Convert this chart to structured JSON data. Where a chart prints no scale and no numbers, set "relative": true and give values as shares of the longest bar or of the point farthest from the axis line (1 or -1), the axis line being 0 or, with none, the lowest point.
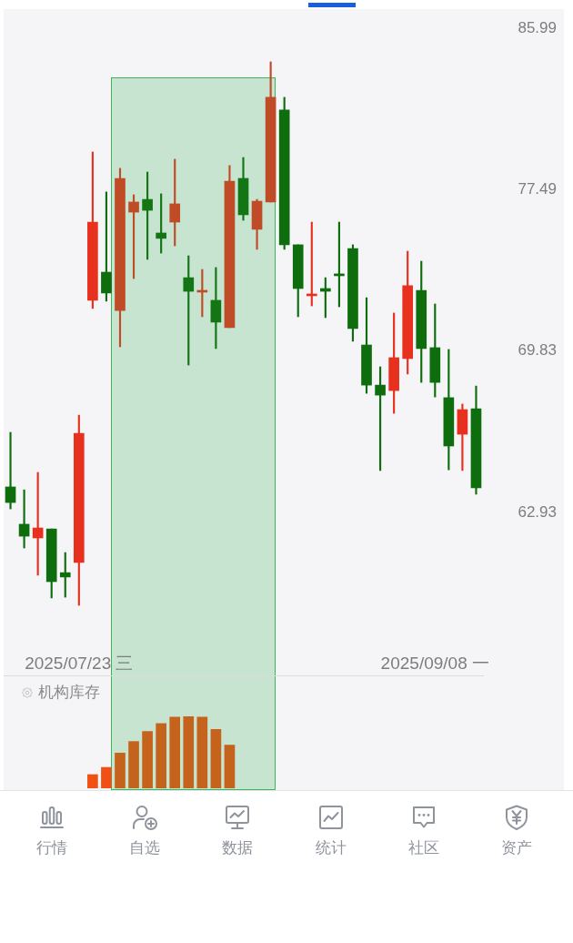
{
  "chart_data": [
    {
      "type": "candlestick",
      "categories": [
        null,
        null,
        null,
        null,
        null,
        "2025/07/23 三",
        null,
        null,
        null,
        null,
        null,
        null,
        null,
        null,
        null,
        null,
        null,
        null,
        null,
        null,
        null,
        null,
        null,
        null,
        null,
        null,
        null,
        null,
        null,
        null,
        null,
        "2025/09/08 一",
        null,
        null,
        null
      ],
      "ohlc": [
        [
          63.97,
          66.26,
          63.07,
          63.33
        ],
        [
          62.45,
          63.85,
          61.5,
          61.97
        ],
        [
          61.9,
          64.57,
          60.43,
          62.3
        ],
        [
          62.26,
          62.26,
          59.55,
          60.18
        ],
        [
          60.53,
          61.32,
          59.58,
          60.36
        ],
        [
          60.93,
          67.0,
          59.27,
          66.22
        ],
        [
          72.15,
          79.39,
          71.77,
          75.88
        ],
        [
          73.47,
          77.37,
          72.11,
          72.49
        ],
        [
          71.68,
          78.56,
          70.02,
          78.05
        ],
        [
          76.37,
          77.23,
          73.17,
          76.87
        ],
        [
          77.0,
          78.37,
          74.08,
          76.46
        ],
        [
          75.35,
          77.28,
          74.38,
          75.09
        ],
        [
          75.88,
          79.02,
          74.73,
          76.78
        ],
        [
          73.21,
          74.25,
          69.2,
          72.57
        ],
        [
          72.53,
          73.6,
          71.39,
          72.61
        ],
        [
          72.15,
          73.69,
          69.94,
          71.14
        ],
        [
          70.89,
          78.7,
          70.89,
          77.91
        ],
        [
          78.05,
          79.11,
          75.97,
          76.24
        ],
        [
          75.53,
          77.0,
          74.56,
          76.91
        ],
        [
          76.87,
          84.14,
          76.87,
          82.24
        ],
        [
          81.57,
          82.24,
          74.56,
          74.78
        ],
        [
          74.78,
          74.78,
          71.39,
          72.7
        ],
        [
          72.36,
          75.88,
          71.89,
          72.44
        ],
        [
          72.7,
          73.21,
          71.35,
          72.57
        ],
        [
          73.39,
          75.88,
          71.85,
          73.3
        ],
        [
          74.6,
          74.78,
          70.27,
          70.85
        ],
        [
          70.1,
          72.27,
          67.95,
          68.31
        ],
        [
          68.31,
          69.12,
          64.65,
          67.87
        ],
        [
          68.07,
          71.56,
          67.08,
          69.53
        ],
        [
          69.49,
          74.47,
          68.8,
          72.83
        ],
        [
          72.61,
          73.99,
          68.43,
          69.94
        ],
        [
          69.98,
          71.98,
          67.79,
          68.43
        ],
        [
          67.76,
          69.9,
          64.68,
          65.68
        ],
        [
          66.18,
          67.48,
          64.65,
          67.24
        ],
        [
          67.28,
          68.27,
          63.67,
          63.93
        ]
      ],
      "colors": [
        "#0e6e0e",
        "#0e6e0e",
        "#e8301e",
        "#0e6e0e",
        "#0e6e0e",
        "#e8301e",
        "#e8301e",
        "#0e6e0e",
        "#c04b27",
        "#c04b27",
        "#137513",
        "#137513",
        "#c04b27",
        "#137513",
        "#c04b27",
        "#137513",
        "#c04b27",
        "#137513",
        "#c04b27",
        "#c04b27",
        "#0e6e0e",
        "#0e6e0e",
        "#e8301e",
        "#0e6e0e",
        "#0e6e0e",
        "#0e6e0e",
        "#0e6e0e",
        "#0e6e0e",
        "#e8301e",
        "#e8301e",
        "#0e6e0e",
        "#0e6e0e",
        "#0e6e0e",
        "#e8301e",
        "#0e6e0e"
      ],
      "log": true,
      "ylim": [
        56.65,
        86.95
      ],
      "yticks": [
        85.99,
        77.49,
        69.83,
        62.93
      ]
    },
    {
      "type": "bar",
      "title": "机构库存",
      "categories": [
        null,
        null,
        null,
        null,
        null,
        null,
        null,
        null,
        null,
        null,
        null,
        null,
        null,
        null,
        null,
        null,
        null,
        null,
        null,
        null,
        null,
        null,
        null,
        null,
        null,
        null,
        null,
        null,
        null,
        null,
        null,
        null,
        null,
        null,
        null
      ],
      "values": [
        null,
        null,
        null,
        null,
        null,
        null,
        0.19,
        0.29,
        0.49,
        0.65,
        0.79,
        0.9,
        0.99,
        1,
        0.99,
        0.82,
        0.6,
        null,
        null,
        null,
        null,
        null,
        null,
        null,
        null,
        null,
        null,
        null,
        null,
        null,
        null,
        null,
        null,
        null,
        null
      ],
      "colors": [
        "#f05014",
        "#f05014",
        "#f05014",
        "#f05014",
        "#f05014",
        "#f05014",
        "#f05014",
        "#f05014",
        "#c5621c",
        "#c5621c",
        "#c5621c",
        "#c5621c",
        "#c5621c",
        "#c5621c",
        "#c5621c",
        "#c5621c",
        "#c5621c",
        "#f05014",
        "#f05014",
        "#f05014",
        "#f05014",
        "#f05014",
        "#f05014",
        "#f05014",
        "#f05014",
        "#f05014",
        "#f05014",
        "#f05014",
        "#f05014",
        "#f05014",
        "#f05014",
        "#f05014",
        "#f05014",
        "#f05014",
        "#f05014"
      ],
      "relative": true
    },
    {
      "type": "other",
      "annotations": [
        "行情",
        "自选",
        "数据",
        "统计",
        "社区",
        "资产"
      ]
    }
  ]
}
